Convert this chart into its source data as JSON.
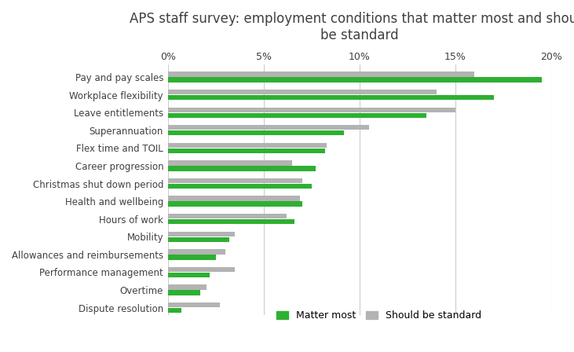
{
  "title": "APS staff survey: employment conditions that matter most and should\nbe standard",
  "categories": [
    "Pay and pay scales",
    "Workplace flexibility",
    "Leave entitlements",
    "Superannuation",
    "Flex time and TOIL",
    "Career progression",
    "Christmas shut down period",
    "Health and wellbeing",
    "Hours of work",
    "Mobility",
    "Allowances and reimbursements",
    "Performance management",
    "Overtime",
    "Dispute resolution"
  ],
  "matter_most": [
    19.5,
    17.0,
    13.5,
    9.2,
    8.2,
    7.7,
    7.5,
    7.0,
    6.6,
    3.2,
    2.5,
    2.2,
    1.7,
    0.7
  ],
  "should_be_standard": [
    16.0,
    14.0,
    15.0,
    10.5,
    8.3,
    6.5,
    7.0,
    6.9,
    6.2,
    3.5,
    3.0,
    3.5,
    2.0,
    2.7
  ],
  "color_matter": "#2db031",
  "color_standard": "#b3b3b3",
  "xlim": [
    0,
    20
  ],
  "xtick_values": [
    0,
    5,
    10,
    15,
    20
  ],
  "xtick_labels": [
    "0%",
    "5%",
    "10%",
    "15%",
    "20%"
  ],
  "bar_height": 0.28,
  "bar_gap": 0.03,
  "title_fontsize": 12,
  "label_fontsize": 8.5,
  "tick_fontsize": 9,
  "legend_labels": [
    "Matter most",
    "Should be standard"
  ],
  "background_color": "#ffffff",
  "grid_color": "#cccccc",
  "text_color": "#404040"
}
